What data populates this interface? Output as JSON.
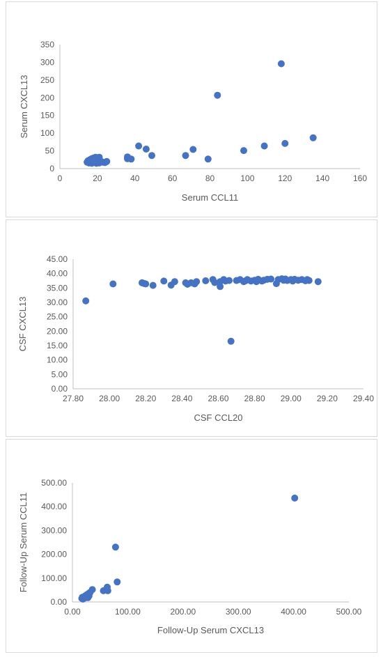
{
  "colors": {
    "marker": "#4472c4",
    "axis": "#bfbfbf",
    "text": "#595959"
  },
  "chart_data": [
    {
      "type": "scatter",
      "xlabel": "Serum CCL11",
      "ylabel": "Serum CXCL13",
      "xlim": [
        0,
        160
      ],
      "ylim": [
        0,
        350
      ],
      "xticks": [
        0,
        20,
        40,
        60,
        80,
        100,
        120,
        140,
        160
      ],
      "yticks": [
        0,
        50,
        100,
        150,
        200,
        250,
        300,
        350
      ],
      "xtick_labels": [
        "0",
        "20",
        "40",
        "60",
        "80",
        "100",
        "120",
        "140",
        "160"
      ],
      "ytick_labels": [
        "0",
        "50",
        "100",
        "150",
        "200",
        "250",
        "300",
        "350"
      ],
      "grid": false,
      "legend": "none",
      "points": [
        [
          14.5,
          18
        ],
        [
          15,
          22
        ],
        [
          15.5,
          16
        ],
        [
          16,
          25
        ],
        [
          16.5,
          20
        ],
        [
          17,
          28
        ],
        [
          17,
          15
        ],
        [
          17.5,
          22
        ],
        [
          18,
          30
        ],
        [
          18,
          18
        ],
        [
          18.5,
          25
        ],
        [
          19,
          20
        ],
        [
          19,
          32
        ],
        [
          19.5,
          15
        ],
        [
          20,
          22
        ],
        [
          20,
          28
        ],
        [
          20.5,
          18
        ],
        [
          21,
          32
        ],
        [
          21,
          16
        ],
        [
          22,
          20
        ],
        [
          23,
          18
        ],
        [
          24,
          17
        ],
        [
          25,
          20
        ],
        [
          36,
          33
        ],
        [
          36,
          28
        ],
        [
          38,
          27
        ],
        [
          42,
          64
        ],
        [
          46,
          55
        ],
        [
          49,
          37
        ],
        [
          67,
          37
        ],
        [
          71,
          54
        ],
        [
          79,
          27
        ],
        [
          84,
          207
        ],
        [
          98,
          51
        ],
        [
          109,
          64
        ],
        [
          118,
          296
        ],
        [
          120,
          71
        ],
        [
          135,
          87
        ]
      ]
    },
    {
      "type": "scatter",
      "xlabel": "CSF CCL20",
      "ylabel": "CSF CXCL13",
      "xlim": [
        27.8,
        29.4
      ],
      "ylim": [
        0,
        45
      ],
      "xticks": [
        27.8,
        28.0,
        28.2,
        28.4,
        28.6,
        28.8,
        29.0,
        29.2,
        29.4
      ],
      "yticks": [
        0,
        5,
        10,
        15,
        20,
        25,
        30,
        35,
        40,
        45
      ],
      "xtick_labels": [
        "27.80",
        "28.00",
        "28.20",
        "28.40",
        "28.60",
        "28.80",
        "29.00",
        "29.20",
        "29.40"
      ],
      "ytick_labels": [
        "0.00",
        "5.00",
        "10.00",
        "15.00",
        "20.00",
        "25.00",
        "30.00",
        "35.00",
        "40.00",
        "45.00"
      ],
      "grid": false,
      "legend": "none",
      "points": [
        [
          27.87,
          30.5
        ],
        [
          28.02,
          36.4
        ],
        [
          28.18,
          36.8
        ],
        [
          28.19,
          36.6
        ],
        [
          28.2,
          36.4
        ],
        [
          28.24,
          35.9
        ],
        [
          28.3,
          37.4
        ],
        [
          28.34,
          36.0
        ],
        [
          28.36,
          37.2
        ],
        [
          28.42,
          36.8
        ],
        [
          28.43,
          36.3
        ],
        [
          28.45,
          36.8
        ],
        [
          28.47,
          36.4
        ],
        [
          28.48,
          37.2
        ],
        [
          28.53,
          37.5
        ],
        [
          28.57,
          37.9
        ],
        [
          28.58,
          36.9
        ],
        [
          28.61,
          37.2
        ],
        [
          28.61,
          35.5
        ],
        [
          28.63,
          37.9
        ],
        [
          28.64,
          37.4
        ],
        [
          28.66,
          37.6
        ],
        [
          28.67,
          16.5
        ],
        [
          28.7,
          37.6
        ],
        [
          28.72,
          37.9
        ],
        [
          28.74,
          37.2
        ],
        [
          28.75,
          37.5
        ],
        [
          28.76,
          37.9
        ],
        [
          28.78,
          37.4
        ],
        [
          28.8,
          37.7
        ],
        [
          28.81,
          37.2
        ],
        [
          28.82,
          38.0
        ],
        [
          28.84,
          37.4
        ],
        [
          28.85,
          37.7
        ],
        [
          28.87,
          38.0
        ],
        [
          28.89,
          38.1
        ],
        [
          28.92,
          36.5
        ],
        [
          28.93,
          37.9
        ],
        [
          28.95,
          38.2
        ],
        [
          28.96,
          37.7
        ],
        [
          28.97,
          38.1
        ],
        [
          28.98,
          37.6
        ],
        [
          29.0,
          37.9
        ],
        [
          29.01,
          37.4
        ],
        [
          29.02,
          38.0
        ],
        [
          29.04,
          37.7
        ],
        [
          29.06,
          37.9
        ],
        [
          29.08,
          37.5
        ],
        [
          29.09,
          37.9
        ],
        [
          29.1,
          37.6
        ],
        [
          29.15,
          37.2
        ]
      ]
    },
    {
      "type": "scatter",
      "xlabel": "Follow-Up Serum CXCL13",
      "ylabel": "Follow-Up Serum CCL11",
      "xlim": [
        0,
        500
      ],
      "ylim": [
        0,
        500
      ],
      "xticks": [
        0,
        100,
        200,
        300,
        400,
        500
      ],
      "yticks": [
        0,
        100,
        200,
        300,
        400,
        500
      ],
      "xtick_labels": [
        "0.00",
        "100.00",
        "200.00",
        "300.00",
        "400.00",
        "500.00"
      ],
      "ytick_labels": [
        "0.00",
        "100.00",
        "200.00",
        "300.00",
        "400.00",
        "500.00"
      ],
      "grid": false,
      "legend": "none",
      "points": [
        [
          17,
          15
        ],
        [
          18,
          20
        ],
        [
          19,
          12
        ],
        [
          20,
          18
        ],
        [
          21,
          22
        ],
        [
          22,
          16
        ],
        [
          23,
          25
        ],
        [
          24,
          20
        ],
        [
          25,
          28
        ],
        [
          26,
          30
        ],
        [
          27,
          22
        ],
        [
          28,
          18
        ],
        [
          29,
          35
        ],
        [
          30,
          25
        ],
        [
          32,
          40
        ],
        [
          36,
          52
        ],
        [
          56,
          47
        ],
        [
          63,
          62
        ],
        [
          64,
          47
        ],
        [
          78,
          230
        ],
        [
          81,
          84
        ],
        [
          402,
          436
        ]
      ]
    }
  ]
}
